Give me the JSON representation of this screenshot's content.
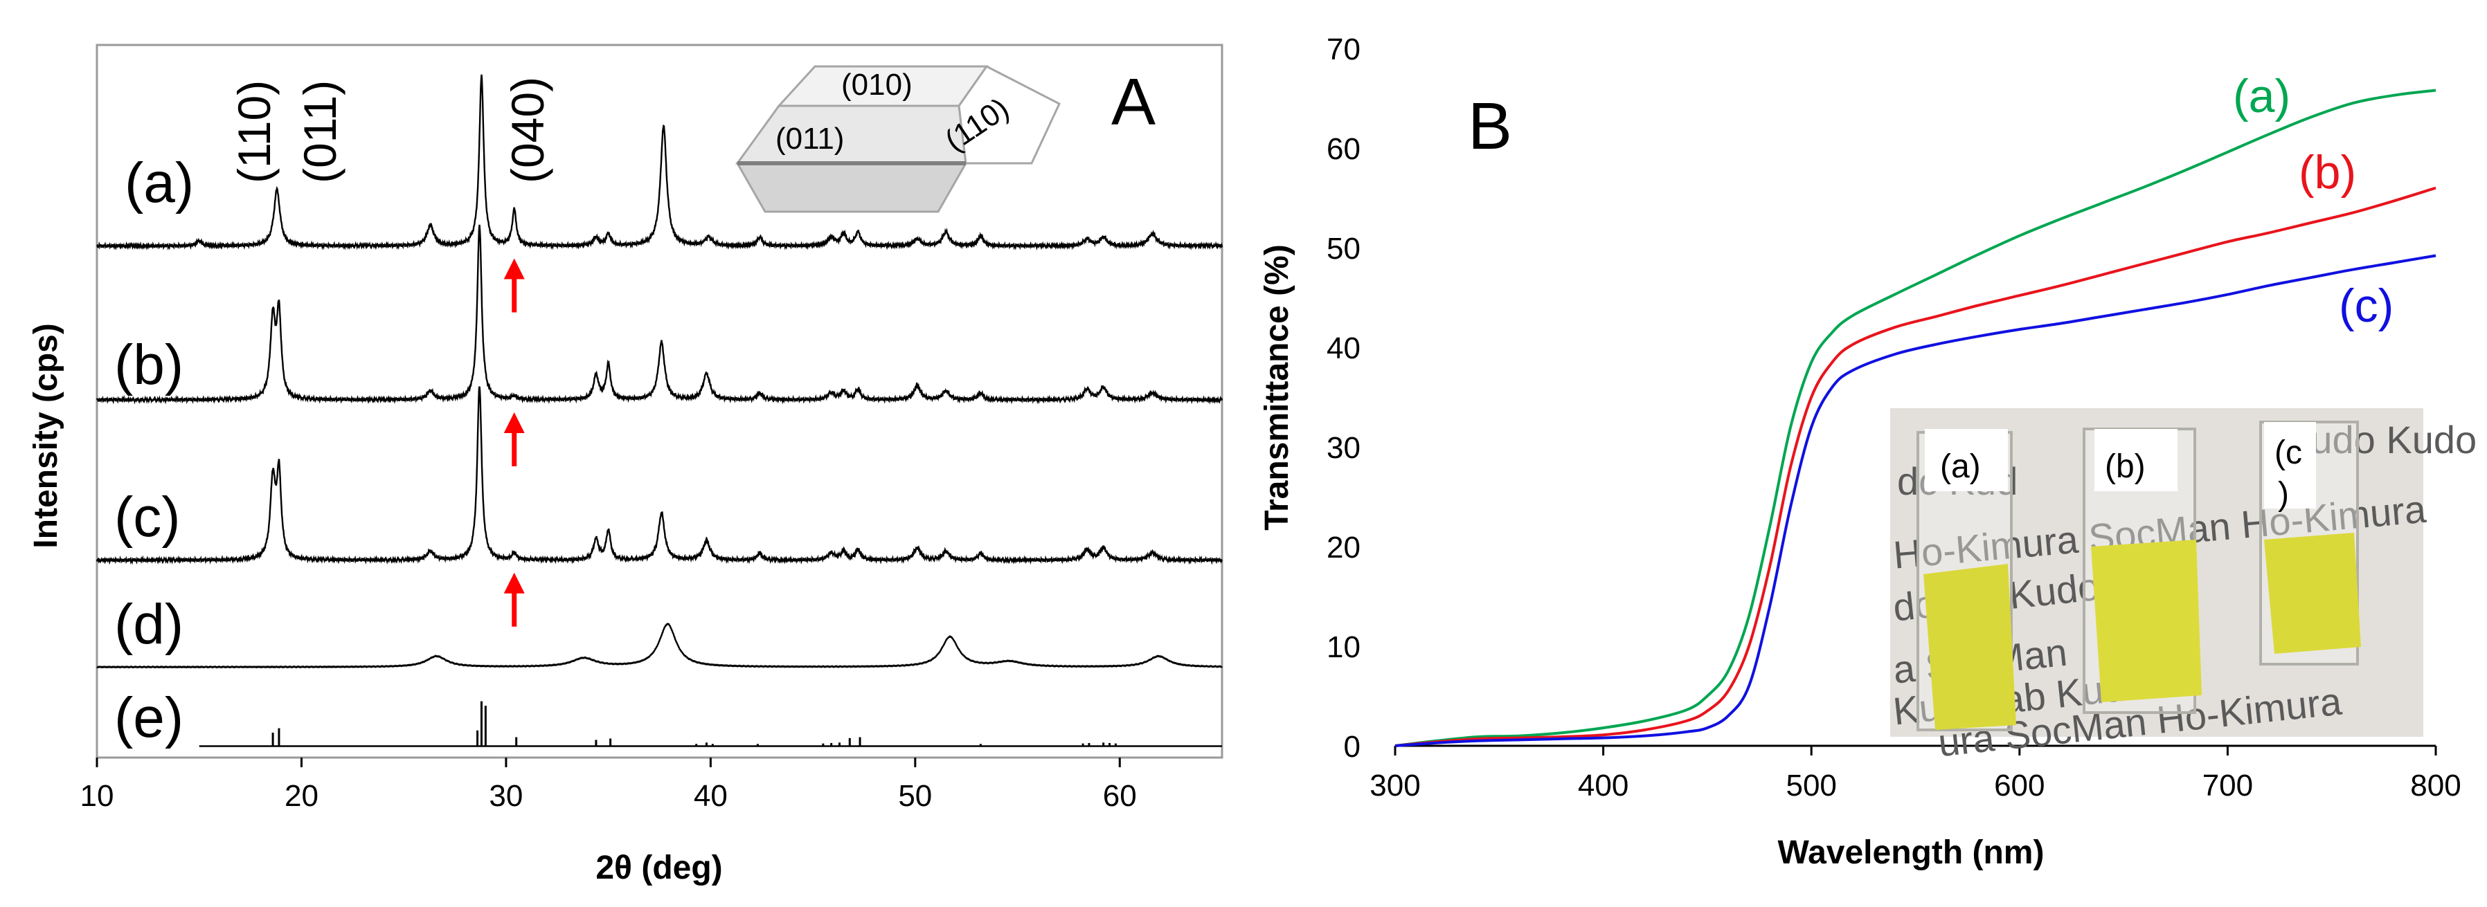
{
  "panels": [
    {
      "type": "line",
      "panel_label": "A",
      "xlabel": "2θ (deg)",
      "ylabel": "Intensity (cps)",
      "xlim": [
        10,
        65
      ],
      "x_ticks": [
        10,
        20,
        30,
        40,
        50,
        60
      ],
      "series": [
        {
          "name": "(a)",
          "color": "#000000",
          "baseline_pct": 71.8,
          "scale_pct": 24,
          "peaks": [
            [
              15,
              0.03,
              0.15
            ],
            [
              18.8,
              0.33,
              0.18
            ],
            [
              26.3,
              0.12,
              0.2
            ],
            [
              28.8,
              1.0,
              0.13
            ],
            [
              30.4,
              0.21,
              0.12
            ],
            [
              34.4,
              0.05,
              0.15
            ],
            [
              35.0,
              0.07,
              0.13
            ],
            [
              37.7,
              0.7,
              0.18
            ],
            [
              39.9,
              0.05,
              0.2
            ],
            [
              42.4,
              0.05,
              0.15
            ],
            [
              45.9,
              0.05,
              0.2
            ],
            [
              46.5,
              0.07,
              0.15
            ],
            [
              47.2,
              0.08,
              0.15
            ],
            [
              50.1,
              0.04,
              0.2
            ],
            [
              51.5,
              0.08,
              0.2
            ],
            [
              53.2,
              0.06,
              0.15
            ],
            [
              58.4,
              0.04,
              0.2
            ],
            [
              59.2,
              0.05,
              0.2
            ],
            [
              61.6,
              0.07,
              0.25
            ]
          ]
        },
        {
          "name": "(b)",
          "color": "#000000",
          "baseline_pct": 50.2,
          "scale_pct": 24.5,
          "peaks": [
            [
              18.6,
              0.45,
              0.15
            ],
            [
              18.9,
              0.48,
              0.13
            ],
            [
              26.3,
              0.05,
              0.2
            ],
            [
              28.7,
              1.0,
              0.13
            ],
            [
              30.4,
              0.02,
              0.12
            ],
            [
              34.4,
              0.14,
              0.15
            ],
            [
              35.0,
              0.2,
              0.13
            ],
            [
              37.6,
              0.33,
              0.18
            ],
            [
              39.8,
              0.15,
              0.2
            ],
            [
              42.4,
              0.04,
              0.15
            ],
            [
              45.9,
              0.04,
              0.2
            ],
            [
              46.5,
              0.05,
              0.15
            ],
            [
              47.2,
              0.06,
              0.15
            ],
            [
              50.1,
              0.08,
              0.2
            ],
            [
              51.5,
              0.05,
              0.2
            ],
            [
              53.2,
              0.04,
              0.15
            ],
            [
              58.4,
              0.06,
              0.2
            ],
            [
              59.2,
              0.07,
              0.2
            ],
            [
              61.6,
              0.04,
              0.25
            ]
          ]
        },
        {
          "name": "(c)",
          "color": "#000000",
          "baseline_pct": 27.7,
          "scale_pct": 24.5,
          "peaks": [
            [
              18.6,
              0.45,
              0.15
            ],
            [
              18.9,
              0.48,
              0.13
            ],
            [
              26.3,
              0.05,
              0.2
            ],
            [
              28.7,
              1.0,
              0.13
            ],
            [
              30.4,
              0.04,
              0.12
            ],
            [
              34.4,
              0.12,
              0.15
            ],
            [
              35.0,
              0.17,
              0.13
            ],
            [
              37.6,
              0.27,
              0.18
            ],
            [
              39.8,
              0.11,
              0.2
            ],
            [
              42.4,
              0.04,
              0.15
            ],
            [
              45.9,
              0.04,
              0.2
            ],
            [
              46.5,
              0.05,
              0.15
            ],
            [
              47.2,
              0.06,
              0.15
            ],
            [
              50.1,
              0.07,
              0.2
            ],
            [
              51.5,
              0.05,
              0.2
            ],
            [
              53.2,
              0.04,
              0.15
            ],
            [
              58.4,
              0.06,
              0.2
            ],
            [
              59.2,
              0.07,
              0.2
            ],
            [
              61.6,
              0.04,
              0.25
            ]
          ]
        },
        {
          "name": "(d)",
          "color": "#000000",
          "baseline_pct": 12.7,
          "scale_pct": 6,
          "peaks": [
            [
              26.6,
              0.25,
              0.6
            ],
            [
              33.8,
              0.2,
              0.7
            ],
            [
              37.9,
              1.0,
              0.5
            ],
            [
              51.7,
              0.7,
              0.5
            ],
            [
              54.6,
              0.12,
              0.8
            ],
            [
              61.9,
              0.25,
              0.6
            ]
          ]
        }
      ],
      "reference_sticks": {
        "name": "(e)",
        "color": "#000000",
        "baseline_pct": 1.6,
        "scale_pct": 6.3,
        "x_start": 15,
        "sticks": [
          [
            18.6,
            0.3
          ],
          [
            18.9,
            0.4
          ],
          [
            28.6,
            0.35
          ],
          [
            28.8,
            1.0
          ],
          [
            29.0,
            0.9
          ],
          [
            30.5,
            0.2
          ],
          [
            34.4,
            0.14
          ],
          [
            35.1,
            0.17
          ],
          [
            39.3,
            0.05
          ],
          [
            39.8,
            0.08
          ],
          [
            40.1,
            0.05
          ],
          [
            42.3,
            0.05
          ],
          [
            45.5,
            0.06
          ],
          [
            45.9,
            0.07
          ],
          [
            46.3,
            0.08
          ],
          [
            46.8,
            0.18
          ],
          [
            47.3,
            0.2
          ],
          [
            53.2,
            0.05
          ],
          [
            58.2,
            0.06
          ],
          [
            58.5,
            0.07
          ],
          [
            59.2,
            0.08
          ],
          [
            59.5,
            0.07
          ],
          [
            59.8,
            0.06
          ]
        ]
      },
      "series_labels": [
        "(a)",
        "(b)",
        "(c)",
        "(d)",
        "(e)"
      ],
      "peak_labels": [
        {
          "text": "(110)",
          "x": 18.5
        },
        {
          "text": "(011)",
          "x": 20.8
        },
        {
          "text": "(040)",
          "x": 30.3
        }
      ],
      "arrows": [
        {
          "x": 30.4,
          "series": "(a)"
        },
        {
          "x": 30.4,
          "series": "(b)"
        },
        {
          "x": 30.4,
          "series": "(c)"
        }
      ],
      "arrow_color": "#ff0000",
      "crystal_faces": [
        "(010)",
        "(011)",
        "(110)"
      ]
    },
    {
      "type": "line",
      "panel_label": "B",
      "xlabel": "Wavelength (nm)",
      "ylabel": "Transmittance (%)",
      "xlim": [
        300,
        800
      ],
      "ylim": [
        0,
        70
      ],
      "x_ticks": [
        300,
        400,
        500,
        600,
        700,
        800
      ],
      "y_ticks": [
        0,
        10,
        20,
        30,
        40,
        50,
        60,
        70
      ],
      "series": [
        {
          "name": "(a)",
          "color": "#00a651",
          "x": [
            300,
            320,
            340,
            360,
            380,
            400,
            420,
            440,
            450,
            460,
            470,
            480,
            490,
            500,
            510,
            520,
            540,
            560,
            580,
            600,
            620,
            640,
            660,
            680,
            700,
            720,
            740,
            760,
            780,
            800
          ],
          "values": [
            0,
            0.5,
            0.9,
            1.0,
            1.3,
            1.8,
            2.5,
            3.6,
            5,
            7.5,
            13,
            22,
            32,
            38.5,
            41.5,
            43.2,
            45.3,
            47.3,
            49.3,
            51.2,
            52.9,
            54.5,
            56.1,
            57.8,
            59.6,
            61.4,
            63.1,
            64.5,
            65.3,
            65.8
          ]
        },
        {
          "name": "(b)",
          "color": "#e8141c",
          "x": [
            300,
            320,
            340,
            360,
            380,
            400,
            420,
            440,
            450,
            460,
            470,
            480,
            490,
            500,
            510,
            520,
            540,
            560,
            580,
            600,
            620,
            640,
            660,
            680,
            700,
            720,
            740,
            760,
            780,
            800
          ],
          "values": [
            0,
            0.4,
            0.7,
            0.8,
            0.9,
            1.1,
            1.6,
            2.5,
            3.5,
            5.5,
            10,
            18,
            28,
            35,
            38.5,
            40.3,
            42,
            43.1,
            44.2,
            45.2,
            46.2,
            47.3,
            48.4,
            49.5,
            50.6,
            51.5,
            52.5,
            53.5,
            54.7,
            56.0
          ]
        },
        {
          "name": "(c)",
          "color": "#1010e0",
          "x": [
            300,
            320,
            340,
            360,
            380,
            400,
            420,
            440,
            450,
            460,
            470,
            480,
            490,
            500,
            510,
            520,
            540,
            560,
            580,
            600,
            620,
            640,
            660,
            680,
            700,
            720,
            740,
            760,
            780,
            800
          ],
          "values": [
            0,
            0.3,
            0.5,
            0.6,
            0.7,
            0.8,
            1.0,
            1.4,
            1.8,
            3,
            6,
            14,
            24,
            32,
            36,
            37.7,
            39.3,
            40.3,
            41.1,
            41.8,
            42.4,
            43.1,
            43.8,
            44.5,
            45.3,
            46.2,
            47,
            47.8,
            48.5,
            49.2
          ]
        }
      ],
      "inset_photo_labels": [
        "(a)",
        "(b)",
        "(c",
        ")"
      ],
      "inset_background_text": [
        "dc Kud",
        "Kudo Kudo",
        "Ho-Kimura SocMan Ho-Kimura",
        "do lab Kudo",
        "a SocMan",
        "Kudo lab Kudo",
        "ura SocMan Ho-Kimura"
      ]
    }
  ]
}
